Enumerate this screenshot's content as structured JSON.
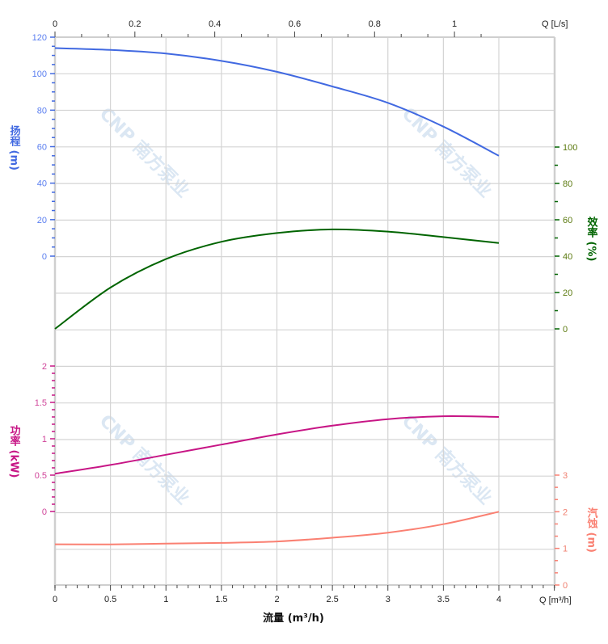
{
  "chart_data": {
    "type": "line",
    "x_bottom": {
      "label": "流量 (m³/h)",
      "unit_label": "Q [m³/h]",
      "range": [
        0,
        4.5
      ],
      "ticks": [
        0,
        0.5,
        1,
        1.5,
        2,
        2.5,
        3,
        3.5,
        4
      ],
      "tick_labels": [
        "0",
        "0.5",
        "1",
        "1.5",
        "2",
        "2.5",
        "3",
        "3.5",
        "4"
      ]
    },
    "x_top": {
      "unit_label": "Q [L/s]",
      "ticks": [
        0,
        0.2,
        0.4,
        0.6,
        0.8,
        1
      ],
      "tick_labels": [
        "0",
        "0.2",
        "0.4",
        "0.6",
        "0.8",
        "1"
      ]
    },
    "grid": true,
    "x": [
      0,
      0.5,
      1,
      1.5,
      2,
      2.5,
      3,
      3.5,
      4
    ],
    "series": [
      {
        "key": "head",
        "axis_label": "扬程 (m)",
        "color": "#4169e1",
        "tick_color": "#5b7ff0",
        "ticks": [
          0,
          20,
          40,
          60,
          80,
          100,
          120
        ],
        "ylim": [
          0,
          120
        ],
        "side": "left",
        "values": [
          114,
          113,
          111,
          107,
          101,
          93,
          84,
          71,
          55
        ]
      },
      {
        "key": "efficiency",
        "axis_label": "效率 (%)",
        "color": "#006400",
        "tick_color": "#5c7a10",
        "ticks": [
          0,
          20,
          40,
          60,
          80,
          100
        ],
        "ylim": [
          0,
          100
        ],
        "side": "right",
        "values": [
          0,
          22.7,
          38.4,
          47.9,
          52.7,
          54.7,
          53.5,
          50.5,
          47.2
        ]
      },
      {
        "key": "power",
        "axis_label": "功率 (kW)",
        "color": "#c71585",
        "tick_color": "#d0459a",
        "ticks": [
          0,
          0.5,
          1,
          1.5,
          2
        ],
        "tick_labels": [
          "0",
          "0.5",
          "1",
          "1.5",
          "2"
        ],
        "ylim": [
          0,
          2
        ],
        "side": "left",
        "values": [
          0.52,
          0.64,
          0.78,
          0.92,
          1.06,
          1.18,
          1.27,
          1.31,
          1.3
        ]
      },
      {
        "key": "npsh",
        "axis_label": "汽蚀 (m)",
        "color": "#fa8072",
        "tick_color": "#f08070",
        "ticks": [
          0,
          1,
          2,
          3
        ],
        "ylim": [
          0,
          3
        ],
        "side": "right",
        "values": [
          1.11,
          1.11,
          1.13,
          1.15,
          1.19,
          1.29,
          1.43,
          1.66,
          2.0
        ]
      }
    ],
    "watermark": "CNP 南方泵业"
  }
}
